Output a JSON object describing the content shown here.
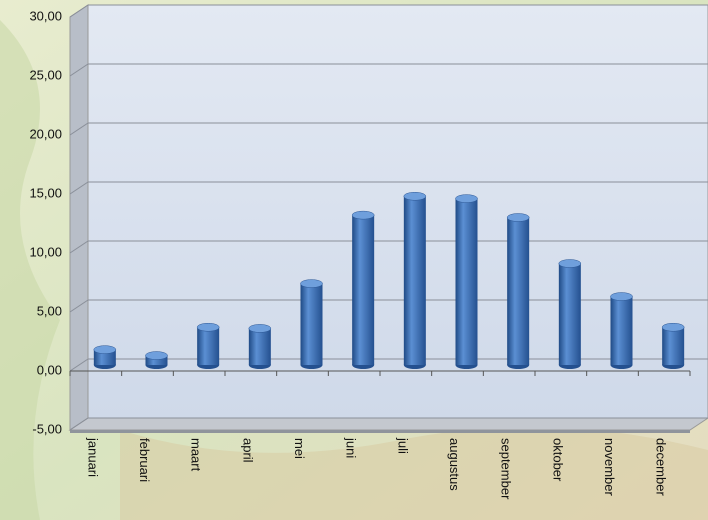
{
  "chart_data": {
    "type": "bar",
    "categories": [
      "januari",
      "februari",
      "maart",
      "april",
      "mei",
      "juni",
      "juli",
      "augustus",
      "september",
      "oktober",
      "november",
      "december"
    ],
    "values": [
      1.3,
      0.8,
      3.2,
      3.1,
      6.9,
      12.7,
      14.3,
      14.1,
      12.5,
      8.6,
      5.8,
      3.2
    ],
    "color": "#3a6fb5",
    "ylim": [
      -5,
      30
    ],
    "yticks": [
      {
        "value": -5,
        "label": "-5,00"
      },
      {
        "value": 0,
        "label": "0,00"
      },
      {
        "value": 5,
        "label": "5,00"
      },
      {
        "value": 10,
        "label": "10,00"
      },
      {
        "value": 15,
        "label": "15,00"
      },
      {
        "value": 20,
        "label": "20,00"
      },
      {
        "value": 25,
        "label": "25,00"
      },
      {
        "value": 30,
        "label": "30,00"
      }
    ],
    "grid": true
  }
}
